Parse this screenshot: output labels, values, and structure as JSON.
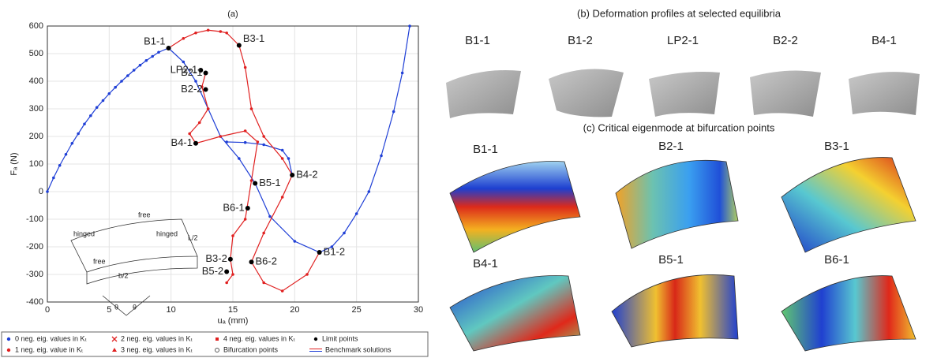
{
  "chart_data": {
    "type": "line",
    "title": "(a)",
    "xlabel": "uₐ (mm)",
    "ylabel": "Fₐ (N)",
    "xlim": [
      0,
      30
    ],
    "ylim": [
      -400,
      600
    ],
    "xticks": [
      0,
      5,
      10,
      15,
      20,
      25,
      30
    ],
    "yticks": [
      -400,
      -300,
      -200,
      -100,
      0,
      100,
      200,
      300,
      400,
      500,
      600
    ],
    "grid": true,
    "series": [
      {
        "name": "0 neg. eig. values in Kₜ",
        "color": "#1f3fd6",
        "marker": "dot",
        "x": [
          0,
          0.5,
          1,
          1.5,
          2,
          2.5,
          3,
          3.5,
          4,
          4.5,
          5,
          5.5,
          6,
          6.5,
          7,
          7.5,
          8,
          8.5,
          9,
          9.8,
          11,
          12,
          13,
          14,
          15.5,
          16.8,
          18,
          20,
          22,
          23,
          24,
          25,
          26,
          27,
          28,
          28.7,
          29.3,
          null,
          14.5,
          16,
          17.5,
          19,
          19.5,
          19.8
        ],
        "values": [
          0,
          50,
          95,
          135,
          175,
          210,
          245,
          275,
          305,
          330,
          355,
          378,
          400,
          420,
          440,
          458,
          475,
          490,
          505,
          520,
          470,
          400,
          300,
          200,
          120,
          30,
          -90,
          -180,
          -220,
          -200,
          -150,
          -80,
          0,
          130,
          290,
          430,
          600,
          null,
          180,
          178,
          170,
          150,
          120,
          60
        ]
      },
      {
        "name": "1 neg. eig. value in Kₜ",
        "color": "#e02020",
        "marker": "dot",
        "x": [
          9.8,
          11,
          12,
          13,
          14,
          14.5,
          15.5,
          16,
          16.5,
          17.5,
          19,
          19.8,
          19,
          17.5,
          16.5,
          17.5,
          19,
          21,
          22,
          null,
          12.8,
          12.5,
          13,
          12.3,
          11.5,
          12,
          14,
          16,
          17,
          16.5,
          16,
          15,
          14.8,
          15,
          14.5
        ],
        "values": [
          520,
          555,
          575,
          585,
          580,
          575,
          530,
          450,
          300,
          200,
          120,
          60,
          -20,
          -150,
          -255,
          -330,
          -360,
          -300,
          -220,
          null,
          430,
          380,
          300,
          250,
          210,
          175,
          200,
          220,
          180,
          40,
          -100,
          -160,
          -245,
          -300,
          -330
        ]
      },
      {
        "name": "2 neg. eig. values in Kₜ",
        "color": "#e02020",
        "marker": "x",
        "x": [],
        "values": []
      },
      {
        "name": "3 neg. eig. values in Kₜ",
        "color": "#e02020",
        "marker": "triangle",
        "x": [],
        "values": []
      },
      {
        "name": "4 neg. eig. values in Kₜ",
        "color": "#e02020",
        "marker": "star",
        "x": [],
        "values": []
      },
      {
        "name": "Limit points",
        "color": "#000000",
        "marker": "dot",
        "x": [
          9.8,
          15.5,
          12.8,
          12.4,
          12.8,
          12,
          19.8,
          16.8,
          16.2,
          14.8,
          16.5,
          14.5,
          22
        ],
        "values": [
          520,
          530,
          430,
          440,
          370,
          175,
          60,
          30,
          -60,
          -245,
          -255,
          -290,
          -220
        ],
        "point_labels": [
          "B1-1",
          "B3-1",
          "B2-1",
          "LP2-1",
          "B2-2",
          "B4-1",
          "B4-2",
          "B5-1",
          "B6-1",
          "B3-2",
          "B6-2",
          "B5-2",
          "B1-2"
        ]
      },
      {
        "name": "Bifurcation points",
        "color": "#555555",
        "marker": "circle",
        "x": [],
        "values": []
      },
      {
        "name": "Benchmark solutions",
        "color": "#1f3fd6",
        "marker": "doubleline",
        "x": [],
        "values": []
      }
    ]
  },
  "inset": {
    "labels": [
      "free",
      "hinged",
      "hinged",
      "free",
      "L/2",
      "b/2",
      "θ",
      "θ"
    ]
  },
  "panel_b": {
    "title": "(b) Deformation profiles at selected equilibria",
    "labels": [
      "B1-1",
      "B1-2",
      "LP2-1",
      "B2-2",
      "B4-1"
    ]
  },
  "panel_c": {
    "title": "(c) Critical eigenmode at bifurcation points",
    "labels": [
      "B1-1",
      "B2-1",
      "B3-1",
      "B4-1",
      "B5-1",
      "B6-1"
    ]
  }
}
